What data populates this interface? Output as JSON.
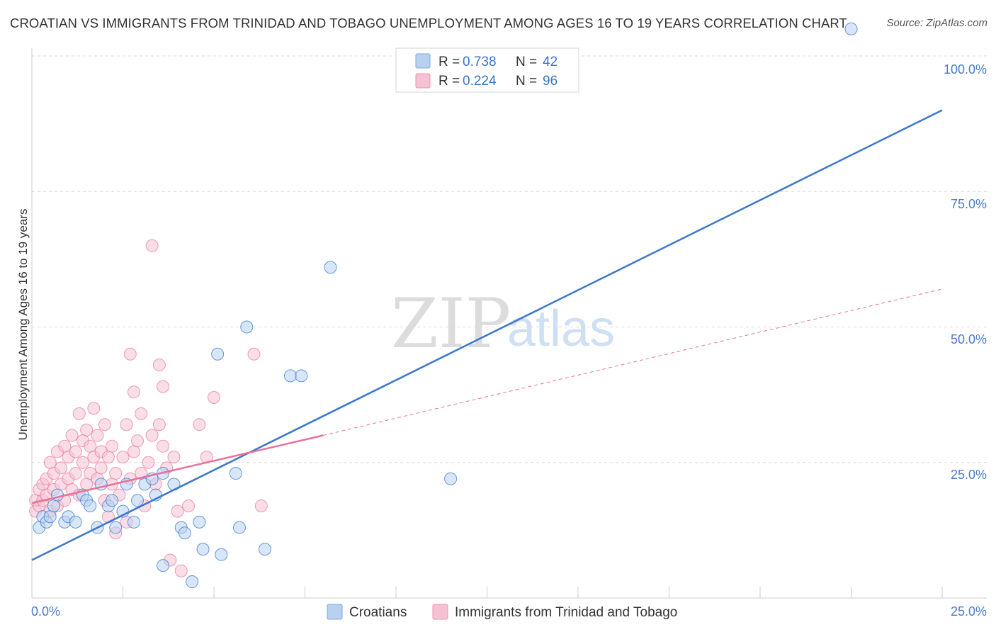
{
  "header": {
    "title": "CROATIAN VS IMMIGRANTS FROM TRINIDAD AND TOBAGO UNEMPLOYMENT AMONG AGES 16 TO 19 YEARS CORRELATION CHART",
    "source": "Source: ZipAtlas.com"
  },
  "watermark": {
    "zip": "ZIP",
    "atlas": "atlas"
  },
  "colors": {
    "blue": "#3a78cc",
    "blue_fill": "#b8d1f0",
    "pink": "#e8729a",
    "pink_fill": "#f6c2d3",
    "tick": "#4a7cc9",
    "grid": "#d9d9d9"
  },
  "chart_data": {
    "type": "scatter",
    "title": "CROATIAN VS IMMIGRANTS FROM TRINIDAD AND TOBAGO UNEMPLOYMENT AMONG AGES 16 TO 19 YEARS CORRELATION CHART",
    "xlabel": "",
    "ylabel": "Unemployment Among Ages 16 to 19 years",
    "xlim": [
      0,
      25
    ],
    "ylim": [
      0,
      100
    ],
    "x_tick_labels": [
      "0.0%",
      "25.0%"
    ],
    "y_tick_labels": [
      "25.0%",
      "50.0%",
      "75.0%",
      "100.0%"
    ],
    "grid": true,
    "legend_position": "top-center",
    "legend": [
      {
        "r_label": "R =",
        "r": "0.738",
        "n_label": "N =",
        "n": "42"
      },
      {
        "r_label": "R =",
        "r": "0.224",
        "n_label": "N =",
        "n": "96"
      }
    ],
    "series": [
      {
        "name": "Croatians",
        "color": "#3a78cc",
        "trend": {
          "x": [
            0,
            25
          ],
          "y": [
            7,
            90
          ]
        },
        "points": [
          [
            0.2,
            13
          ],
          [
            0.3,
            15
          ],
          [
            0.4,
            14
          ],
          [
            0.5,
            15
          ],
          [
            0.6,
            17
          ],
          [
            0.7,
            19
          ],
          [
            0.9,
            14
          ],
          [
            1.0,
            15
          ],
          [
            1.2,
            14
          ],
          [
            1.4,
            19
          ],
          [
            1.5,
            18
          ],
          [
            1.6,
            17
          ],
          [
            1.8,
            13
          ],
          [
            1.9,
            21
          ],
          [
            2.1,
            17
          ],
          [
            2.2,
            18
          ],
          [
            2.3,
            13
          ],
          [
            2.5,
            16
          ],
          [
            2.6,
            21
          ],
          [
            2.8,
            14
          ],
          [
            2.9,
            18
          ],
          [
            3.1,
            21
          ],
          [
            3.3,
            22
          ],
          [
            3.4,
            19
          ],
          [
            3.6,
            23
          ],
          [
            3.6,
            6
          ],
          [
            3.9,
            21
          ],
          [
            4.1,
            13
          ],
          [
            4.2,
            12
          ],
          [
            4.4,
            3
          ],
          [
            4.6,
            14
          ],
          [
            4.7,
            9
          ],
          [
            5.1,
            45
          ],
          [
            5.2,
            8
          ],
          [
            5.6,
            23
          ],
          [
            5.7,
            13
          ],
          [
            5.9,
            50
          ],
          [
            6.4,
            9
          ],
          [
            7.1,
            41
          ],
          [
            7.4,
            41
          ],
          [
            8.2,
            61
          ],
          [
            11.5,
            22
          ],
          [
            22.5,
            105
          ]
        ]
      },
      {
        "name": "Immigrants from Trinidad and Tobago",
        "color": "#e8729a",
        "trend": {
          "x": [
            0,
            8
          ],
          "y": [
            17.5,
            30
          ]
        },
        "trend_dashed": {
          "x": [
            8,
            25
          ],
          "y": [
            30,
            57
          ]
        },
        "points": [
          [
            0.1,
            18
          ],
          [
            0.1,
            16
          ],
          [
            0.2,
            20
          ],
          [
            0.2,
            17
          ],
          [
            0.3,
            21
          ],
          [
            0.3,
            18
          ],
          [
            0.4,
            22
          ],
          [
            0.4,
            19
          ],
          [
            0.5,
            16
          ],
          [
            0.5,
            25
          ],
          [
            0.6,
            23
          ],
          [
            0.6,
            20
          ],
          [
            0.7,
            27
          ],
          [
            0.7,
            17
          ],
          [
            0.8,
            24
          ],
          [
            0.8,
            21
          ],
          [
            0.9,
            28
          ],
          [
            0.9,
            18
          ],
          [
            1.0,
            26
          ],
          [
            1.0,
            22
          ],
          [
            1.1,
            30
          ],
          [
            1.1,
            20
          ],
          [
            1.2,
            27
          ],
          [
            1.2,
            23
          ],
          [
            1.3,
            34
          ],
          [
            1.3,
            19
          ],
          [
            1.4,
            25
          ],
          [
            1.4,
            29
          ],
          [
            1.5,
            21
          ],
          [
            1.5,
            31
          ],
          [
            1.6,
            28
          ],
          [
            1.6,
            23
          ],
          [
            1.7,
            26
          ],
          [
            1.7,
            35
          ],
          [
            1.8,
            22
          ],
          [
            1.8,
            30
          ],
          [
            1.9,
            27
          ],
          [
            1.9,
            24
          ],
          [
            2.0,
            32
          ],
          [
            2.0,
            18
          ],
          [
            2.1,
            26
          ],
          [
            2.1,
            15
          ],
          [
            2.2,
            28
          ],
          [
            2.2,
            21
          ],
          [
            2.3,
            23
          ],
          [
            2.3,
            12
          ],
          [
            2.4,
            19
          ],
          [
            2.5,
            26
          ],
          [
            2.6,
            32
          ],
          [
            2.6,
            14
          ],
          [
            2.7,
            45
          ],
          [
            2.7,
            22
          ],
          [
            2.8,
            38
          ],
          [
            2.8,
            27
          ],
          [
            2.9,
            29
          ],
          [
            3.0,
            34
          ],
          [
            3.0,
            23
          ],
          [
            3.1,
            17
          ],
          [
            3.2,
            25
          ],
          [
            3.3,
            65
          ],
          [
            3.3,
            30
          ],
          [
            3.4,
            21
          ],
          [
            3.5,
            43
          ],
          [
            3.5,
            32
          ],
          [
            3.6,
            39
          ],
          [
            3.6,
            28
          ],
          [
            3.7,
            24
          ],
          [
            3.8,
            7
          ],
          [
            3.9,
            26
          ],
          [
            4.0,
            16
          ],
          [
            4.1,
            5
          ],
          [
            4.3,
            17
          ],
          [
            4.6,
            32
          ],
          [
            4.8,
            26
          ],
          [
            5.0,
            37
          ],
          [
            6.1,
            45
          ],
          [
            6.3,
            17
          ]
        ]
      }
    ]
  },
  "bottom_legend": {
    "blue_label": "Croatians",
    "pink_label": "Immigrants from Trinidad and Tobago"
  }
}
